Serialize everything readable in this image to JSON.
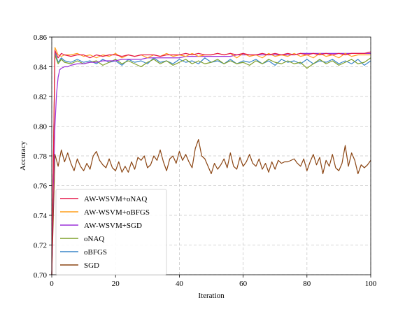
{
  "chart_data": {
    "type": "line",
    "xlabel": "Iteration",
    "ylabel": "Accuracy",
    "xlim": [
      0,
      100
    ],
    "ylim": [
      0.7,
      0.86
    ],
    "xticks": [
      0,
      20,
      40,
      60,
      80,
      100
    ],
    "yticks": [
      0.7,
      0.72,
      0.74,
      0.76,
      0.78,
      0.8,
      0.82,
      0.84,
      0.86
    ],
    "xtick_labels": [
      "0",
      "20",
      "40",
      "60",
      "80",
      "100"
    ],
    "ytick_labels": [
      "0.70",
      "0.72",
      "0.74",
      "0.76",
      "0.78",
      "0.80",
      "0.82",
      "0.84",
      "0.86"
    ],
    "grid": true,
    "legend_position": "lower-left",
    "series": [
      {
        "name": "AW-WSVM+oNAQ",
        "color": "#e6194b",
        "x": [
          0,
          1,
          2,
          3,
          4,
          6,
          8,
          10,
          12,
          14,
          16,
          18,
          20,
          22,
          24,
          26,
          28,
          30,
          32,
          34,
          36,
          38,
          40,
          42,
          44,
          46,
          48,
          50,
          52,
          54,
          56,
          58,
          60,
          62,
          64,
          66,
          68,
          70,
          72,
          74,
          76,
          78,
          80,
          82,
          84,
          86,
          88,
          90,
          92,
          94,
          96,
          98,
          100
        ],
        "y": [
          0.7,
          0.851,
          0.846,
          0.849,
          0.848,
          0.847,
          0.848,
          0.848,
          0.846,
          0.848,
          0.847,
          0.848,
          0.848,
          0.847,
          0.848,
          0.847,
          0.848,
          0.848,
          0.848,
          0.847,
          0.848,
          0.848,
          0.848,
          0.849,
          0.848,
          0.849,
          0.848,
          0.848,
          0.849,
          0.848,
          0.849,
          0.848,
          0.849,
          0.848,
          0.848,
          0.849,
          0.848,
          0.849,
          0.848,
          0.849,
          0.848,
          0.849,
          0.848,
          0.849,
          0.848,
          0.849,
          0.848,
          0.849,
          0.848,
          0.849,
          0.849,
          0.849,
          0.85
        ]
      },
      {
        "name": "AW-WSVM+oBFGS",
        "color": "#ff9f1c",
        "x": [
          0,
          1,
          2,
          3,
          4,
          6,
          8,
          10,
          12,
          14,
          16,
          18,
          20,
          22,
          24,
          26,
          28,
          30,
          32,
          34,
          36,
          38,
          40,
          42,
          44,
          46,
          48,
          50,
          52,
          54,
          56,
          58,
          60,
          62,
          64,
          66,
          68,
          70,
          72,
          74,
          76,
          78,
          80,
          82,
          84,
          86,
          88,
          90,
          92,
          94,
          96,
          98,
          100
        ],
        "y": [
          0.7,
          0.853,
          0.848,
          0.847,
          0.848,
          0.848,
          0.849,
          0.847,
          0.848,
          0.846,
          0.848,
          0.847,
          0.849,
          0.846,
          0.848,
          0.847,
          0.848,
          0.846,
          0.848,
          0.847,
          0.849,
          0.847,
          0.848,
          0.847,
          0.849,
          0.847,
          0.848,
          0.848,
          0.849,
          0.848,
          0.849,
          0.846,
          0.849,
          0.847,
          0.848,
          0.846,
          0.849,
          0.847,
          0.848,
          0.847,
          0.849,
          0.847,
          0.848,
          0.846,
          0.849,
          0.847,
          0.848,
          0.846,
          0.849,
          0.847,
          0.848,
          0.848,
          0.848
        ]
      },
      {
        "name": "AW-WSVM+SGD",
        "color": "#9b30d9",
        "x": [
          0,
          0.5,
          1,
          1.5,
          2,
          2.5,
          3,
          4,
          5,
          6,
          8,
          10,
          12,
          14,
          16,
          18,
          20,
          22,
          24,
          26,
          28,
          30,
          32,
          34,
          36,
          38,
          40,
          42,
          44,
          46,
          48,
          50,
          52,
          54,
          56,
          58,
          60,
          62,
          64,
          66,
          68,
          70,
          72,
          74,
          76,
          78,
          80,
          82,
          84,
          86,
          88,
          90,
          92,
          94,
          96,
          98,
          100
        ],
        "y": [
          0.7,
          0.76,
          0.8,
          0.822,
          0.833,
          0.838,
          0.839,
          0.84,
          0.84,
          0.841,
          0.842,
          0.842,
          0.843,
          0.843,
          0.844,
          0.844,
          0.844,
          0.845,
          0.845,
          0.845,
          0.845,
          0.846,
          0.846,
          0.846,
          0.846,
          0.846,
          0.846,
          0.847,
          0.847,
          0.847,
          0.847,
          0.847,
          0.847,
          0.847,
          0.847,
          0.848,
          0.848,
          0.848,
          0.848,
          0.848,
          0.848,
          0.848,
          0.848,
          0.848,
          0.848,
          0.849,
          0.849,
          0.849,
          0.849,
          0.849,
          0.849,
          0.849,
          0.849,
          0.849,
          0.849,
          0.849,
          0.849
        ]
      },
      {
        "name": "oNAQ",
        "color": "#7fa02a",
        "x": [
          0,
          1,
          2,
          3,
          4,
          6,
          8,
          10,
          12,
          14,
          16,
          18,
          20,
          22,
          24,
          26,
          28,
          30,
          32,
          34,
          36,
          38,
          40,
          42,
          44,
          46,
          48,
          50,
          52,
          54,
          56,
          58,
          60,
          62,
          64,
          66,
          68,
          70,
          72,
          74,
          76,
          78,
          80,
          82,
          84,
          86,
          88,
          90,
          92,
          94,
          96,
          98,
          100
        ],
        "y": [
          0.7,
          0.848,
          0.842,
          0.845,
          0.843,
          0.842,
          0.844,
          0.842,
          0.843,
          0.844,
          0.841,
          0.843,
          0.845,
          0.842,
          0.844,
          0.842,
          0.84,
          0.843,
          0.845,
          0.842,
          0.844,
          0.841,
          0.843,
          0.845,
          0.842,
          0.844,
          0.842,
          0.843,
          0.845,
          0.842,
          0.844,
          0.842,
          0.843,
          0.841,
          0.844,
          0.842,
          0.845,
          0.843,
          0.842,
          0.844,
          0.842,
          0.843,
          0.839,
          0.842,
          0.845,
          0.842,
          0.844,
          0.841,
          0.843,
          0.845,
          0.842,
          0.843,
          0.846
        ]
      },
      {
        "name": "oBFGS",
        "color": "#3a86c8",
        "x": [
          0,
          1,
          2,
          3,
          4,
          6,
          8,
          10,
          12,
          14,
          16,
          18,
          20,
          22,
          24,
          26,
          28,
          30,
          32,
          34,
          36,
          38,
          40,
          42,
          44,
          46,
          48,
          50,
          52,
          54,
          56,
          58,
          60,
          62,
          64,
          66,
          68,
          70,
          72,
          74,
          76,
          78,
          80,
          82,
          84,
          86,
          88,
          90,
          92,
          94,
          96,
          98,
          100
        ],
        "y": [
          0.7,
          0.85,
          0.843,
          0.846,
          0.844,
          0.843,
          0.845,
          0.843,
          0.844,
          0.842,
          0.845,
          0.843,
          0.844,
          0.841,
          0.845,
          0.843,
          0.844,
          0.842,
          0.846,
          0.843,
          0.844,
          0.842,
          0.845,
          0.843,
          0.844,
          0.842,
          0.846,
          0.843,
          0.844,
          0.842,
          0.845,
          0.842,
          0.844,
          0.843,
          0.845,
          0.842,
          0.844,
          0.841,
          0.845,
          0.843,
          0.844,
          0.842,
          0.845,
          0.842,
          0.844,
          0.843,
          0.845,
          0.842,
          0.844,
          0.842,
          0.845,
          0.841,
          0.844
        ]
      },
      {
        "name": "SGD",
        "color": "#8b4513",
        "x": [
          0,
          1,
          2,
          3,
          4,
          5,
          6,
          7,
          8,
          9,
          10,
          11,
          12,
          13,
          14,
          15,
          16,
          17,
          18,
          19,
          20,
          21,
          22,
          23,
          24,
          25,
          26,
          27,
          28,
          29,
          30,
          31,
          32,
          33,
          34,
          35,
          36,
          37,
          38,
          39,
          40,
          41,
          42,
          43,
          44,
          45,
          46,
          47,
          48,
          49,
          50,
          51,
          52,
          53,
          54,
          55,
          56,
          57,
          58,
          59,
          60,
          61,
          62,
          63,
          64,
          65,
          66,
          67,
          68,
          69,
          70,
          71,
          72,
          73,
          74,
          75,
          76,
          77,
          78,
          79,
          80,
          81,
          82,
          83,
          84,
          85,
          86,
          87,
          88,
          89,
          90,
          91,
          92,
          93,
          94,
          95,
          96,
          97,
          98,
          99,
          100
        ],
        "y": [
          0.7,
          0.781,
          0.773,
          0.784,
          0.776,
          0.782,
          0.775,
          0.77,
          0.778,
          0.773,
          0.77,
          0.775,
          0.771,
          0.78,
          0.783,
          0.777,
          0.774,
          0.772,
          0.778,
          0.772,
          0.77,
          0.776,
          0.769,
          0.773,
          0.769,
          0.776,
          0.771,
          0.779,
          0.777,
          0.78,
          0.772,
          0.774,
          0.78,
          0.777,
          0.784,
          0.776,
          0.77,
          0.778,
          0.78,
          0.775,
          0.783,
          0.777,
          0.781,
          0.776,
          0.772,
          0.785,
          0.791,
          0.78,
          0.778,
          0.773,
          0.768,
          0.775,
          0.771,
          0.774,
          0.778,
          0.772,
          0.782,
          0.773,
          0.771,
          0.779,
          0.773,
          0.776,
          0.781,
          0.775,
          0.773,
          0.778,
          0.771,
          0.775,
          0.769,
          0.776,
          0.771,
          0.777,
          0.775,
          0.776,
          0.776,
          0.777,
          0.778,
          0.775,
          0.773,
          0.778,
          0.77,
          0.776,
          0.781,
          0.774,
          0.779,
          0.768,
          0.777,
          0.773,
          0.781,
          0.772,
          0.77,
          0.775,
          0.787,
          0.773,
          0.782,
          0.777,
          0.768,
          0.774,
          0.772,
          0.774,
          0.777
        ]
      }
    ]
  }
}
